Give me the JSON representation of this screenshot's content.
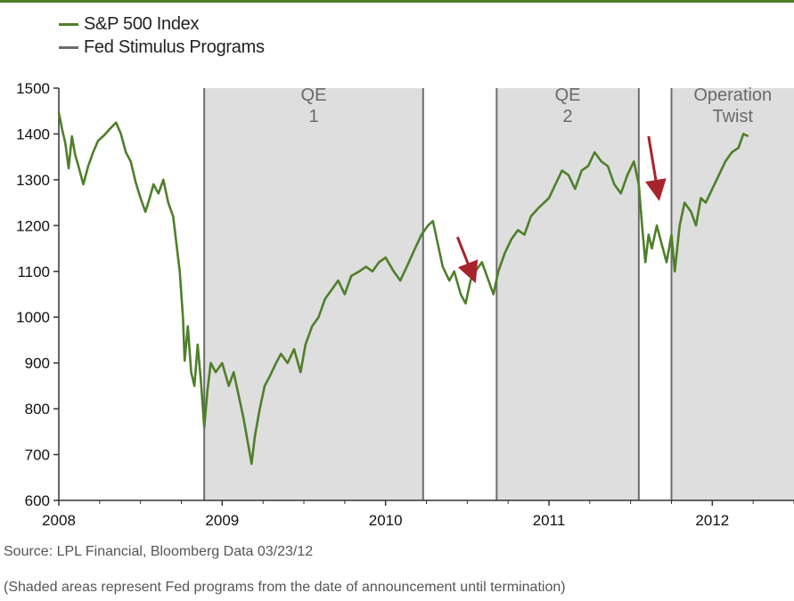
{
  "colors": {
    "accent": "#4f7f2a",
    "program_line": "#6d6d6d",
    "program_fill": "#dedede",
    "arrow": "#a8232b"
  },
  "legend": {
    "sp500_label": "S&P 500 Index",
    "programs_label": "Fed Stimulus Programs"
  },
  "footer": {
    "source": "Source: LPL Financial, Bloomberg Data   03/23/12",
    "note": "(Shaded areas represent Fed programs from the date of announcement until termination)"
  },
  "chart_data": {
    "type": "line",
    "xlabel": "",
    "ylabel": "",
    "xlim": [
      2008.0,
      2012.5
    ],
    "ylim": [
      600,
      1500
    ],
    "x_ticks": [
      "2008",
      "2009",
      "2010",
      "2011",
      "2012"
    ],
    "y_ticks": [
      "600",
      "700",
      "800",
      "900",
      "1000",
      "1100",
      "1200",
      "1300",
      "1400",
      "1500"
    ],
    "grid": false,
    "legend_position": "top-left",
    "series": [
      {
        "name": "S&P 500 Index",
        "points": [
          [
            2008.0,
            1447
          ],
          [
            2008.02,
            1410
          ],
          [
            2008.04,
            1380
          ],
          [
            2008.06,
            1325
          ],
          [
            2008.08,
            1395
          ],
          [
            2008.1,
            1355
          ],
          [
            2008.12,
            1330
          ],
          [
            2008.15,
            1290
          ],
          [
            2008.18,
            1330
          ],
          [
            2008.21,
            1360
          ],
          [
            2008.24,
            1385
          ],
          [
            2008.28,
            1398
          ],
          [
            2008.31,
            1410
          ],
          [
            2008.35,
            1425
          ],
          [
            2008.38,
            1400
          ],
          [
            2008.41,
            1360
          ],
          [
            2008.44,
            1340
          ],
          [
            2008.47,
            1295
          ],
          [
            2008.5,
            1260
          ],
          [
            2008.53,
            1230
          ],
          [
            2008.56,
            1265
          ],
          [
            2008.58,
            1290
          ],
          [
            2008.61,
            1270
          ],
          [
            2008.64,
            1300
          ],
          [
            2008.67,
            1250
          ],
          [
            2008.7,
            1220
          ],
          [
            2008.72,
            1160
          ],
          [
            2008.74,
            1100
          ],
          [
            2008.76,
            1000
          ],
          [
            2008.77,
            905
          ],
          [
            2008.79,
            980
          ],
          [
            2008.81,
            880
          ],
          [
            2008.83,
            850
          ],
          [
            2008.85,
            940
          ],
          [
            2008.87,
            860
          ],
          [
            2008.89,
            760
          ],
          [
            2008.91,
            840
          ],
          [
            2008.93,
            900
          ],
          [
            2008.96,
            880
          ],
          [
            2009.0,
            900
          ],
          [
            2009.04,
            850
          ],
          [
            2009.07,
            880
          ],
          [
            2009.1,
            830
          ],
          [
            2009.13,
            780
          ],
          [
            2009.16,
            720
          ],
          [
            2009.18,
            680
          ],
          [
            2009.2,
            740
          ],
          [
            2009.23,
            800
          ],
          [
            2009.26,
            850
          ],
          [
            2009.29,
            870
          ],
          [
            2009.33,
            900
          ],
          [
            2009.36,
            920
          ],
          [
            2009.4,
            900
          ],
          [
            2009.44,
            930
          ],
          [
            2009.48,
            880
          ],
          [
            2009.51,
            940
          ],
          [
            2009.55,
            980
          ],
          [
            2009.59,
            1000
          ],
          [
            2009.63,
            1040
          ],
          [
            2009.67,
            1060
          ],
          [
            2009.71,
            1080
          ],
          [
            2009.75,
            1050
          ],
          [
            2009.79,
            1090
          ],
          [
            2009.84,
            1100
          ],
          [
            2009.88,
            1110
          ],
          [
            2009.92,
            1100
          ],
          [
            2009.96,
            1120
          ],
          [
            2010.0,
            1130
          ],
          [
            2010.05,
            1100
          ],
          [
            2010.09,
            1080
          ],
          [
            2010.13,
            1110
          ],
          [
            2010.18,
            1150
          ],
          [
            2010.22,
            1180
          ],
          [
            2010.26,
            1200
          ],
          [
            2010.29,
            1210
          ],
          [
            2010.32,
            1160
          ],
          [
            2010.35,
            1110
          ],
          [
            2010.39,
            1080
          ],
          [
            2010.42,
            1100
          ],
          [
            2010.46,
            1050
          ],
          [
            2010.49,
            1030
          ],
          [
            2010.52,
            1080
          ],
          [
            2010.55,
            1100
          ],
          [
            2010.59,
            1120
          ],
          [
            2010.63,
            1080
          ],
          [
            2010.66,
            1050
          ],
          [
            2010.69,
            1100
          ],
          [
            2010.73,
            1140
          ],
          [
            2010.77,
            1170
          ],
          [
            2010.81,
            1190
          ],
          [
            2010.85,
            1180
          ],
          [
            2010.89,
            1220
          ],
          [
            2010.94,
            1240
          ],
          [
            2011.0,
            1260
          ],
          [
            2011.04,
            1290
          ],
          [
            2011.08,
            1320
          ],
          [
            2011.12,
            1310
          ],
          [
            2011.16,
            1280
          ],
          [
            2011.2,
            1320
          ],
          [
            2011.24,
            1330
          ],
          [
            2011.28,
            1360
          ],
          [
            2011.32,
            1340
          ],
          [
            2011.36,
            1330
          ],
          [
            2011.4,
            1290
          ],
          [
            2011.44,
            1270
          ],
          [
            2011.48,
            1310
          ],
          [
            2011.52,
            1340
          ],
          [
            2011.55,
            1290
          ],
          [
            2011.57,
            1200
          ],
          [
            2011.59,
            1120
          ],
          [
            2011.61,
            1180
          ],
          [
            2011.63,
            1150
          ],
          [
            2011.66,
            1200
          ],
          [
            2011.69,
            1160
          ],
          [
            2011.72,
            1120
          ],
          [
            2011.75,
            1180
          ],
          [
            2011.77,
            1100
          ],
          [
            2011.8,
            1200
          ],
          [
            2011.83,
            1250
          ],
          [
            2011.87,
            1230
          ],
          [
            2011.9,
            1200
          ],
          [
            2011.93,
            1260
          ],
          [
            2011.96,
            1250
          ],
          [
            2012.0,
            1280
          ],
          [
            2012.04,
            1310
          ],
          [
            2012.08,
            1340
          ],
          [
            2012.12,
            1360
          ],
          [
            2012.16,
            1370
          ],
          [
            2012.19,
            1400
          ],
          [
            2012.22,
            1395
          ]
        ]
      },
      {
        "name": "Fed Stimulus Programs",
        "programs": [
          {
            "label_line1": "QE",
            "label_line2": "1",
            "start": 2008.89,
            "end": 2010.23
          },
          {
            "label_line1": "QE",
            "label_line2": "2",
            "start": 2010.68,
            "end": 2011.55
          },
          {
            "label_line1": "Operation",
            "label_line2": "Twist",
            "start": 2011.75,
            "end": 2012.5
          }
        ]
      }
    ],
    "annotations": [
      {
        "type": "arrow",
        "x_start": 2010.44,
        "y_start": 1175,
        "x_end": 2010.54,
        "y_end": 1085
      },
      {
        "type": "arrow",
        "x_start": 2011.61,
        "y_start": 1395,
        "x_end": 2011.67,
        "y_end": 1265
      }
    ]
  }
}
